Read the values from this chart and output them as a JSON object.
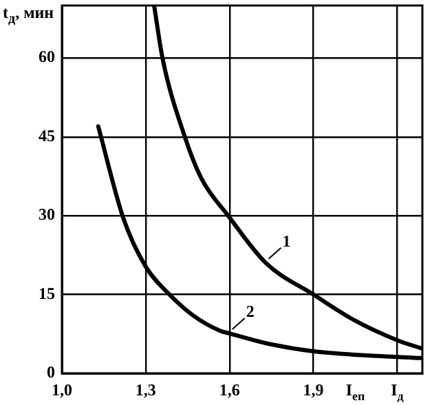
{
  "chart_data": {
    "type": "line",
    "ylabel": "t$_{д}$, мин",
    "xlim": [
      1.0,
      2.29
    ],
    "ylim": [
      0,
      70
    ],
    "xticks": [
      {
        "value": 1.0,
        "label": "1,0"
      },
      {
        "value": 1.3,
        "label": "1,3"
      },
      {
        "value": 1.6,
        "label": "1,6"
      },
      {
        "value": 1.9,
        "label": "1,9"
      },
      {
        "value": 2.2,
        "label": "I$_{д}$"
      }
    ],
    "yticks": [
      0,
      15,
      30,
      45,
      60
    ],
    "series": [
      {
        "name": "1",
        "color": "#000000",
        "x": [
          1.33,
          1.36,
          1.44,
          1.5,
          1.595,
          1.73,
          1.9,
          2.05,
          2.2,
          2.29
        ],
        "values": [
          70,
          60,
          45,
          37,
          30,
          21,
          15,
          10,
          6.3,
          4.7
        ]
      },
      {
        "name": "2",
        "color": "#000000",
        "x": [
          1.13,
          1.22,
          1.3,
          1.385,
          1.47,
          1.566,
          1.6,
          1.75,
          1.9,
          2.2,
          2.29
        ],
        "values": [
          47,
          29.5,
          20.3,
          15,
          11,
          8.1,
          7.6,
          5.5,
          4.2,
          3.1,
          2.9
        ]
      }
    ],
    "annotations": [
      "I$_{еп}$"
    ],
    "grid": true,
    "legend": false,
    "marker": "none",
    "line_style": "solid"
  }
}
